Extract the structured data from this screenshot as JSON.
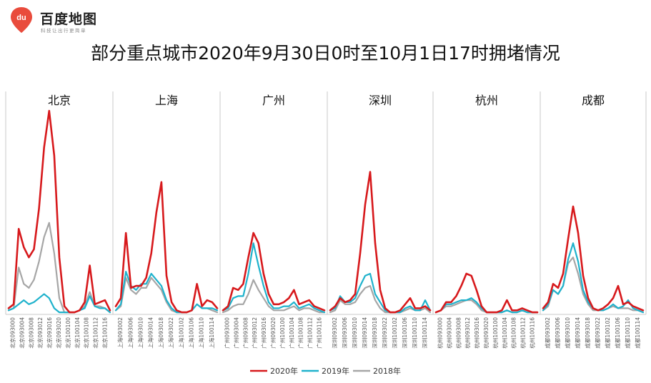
{
  "brand": {
    "name": "百度地图",
    "slogan": "科技让出行更简单",
    "icon_text": "du"
  },
  "chart_data": {
    "type": "line",
    "title": "部分重点城市2020年9月30日0时至10月1日17时拥堵情况",
    "legend_position": "bottom",
    "grid": false,
    "series_names": [
      "2020年",
      "2019年",
      "2018年"
    ],
    "colors": {
      "2020年": "#d7191c",
      "2019年": "#1fb2cc",
      "2018年": "#a6a6a6"
    },
    "ylim": [
      0,
      100
    ],
    "panels": [
      {
        "city": "北京",
        "x_labels": [
          "北京093000",
          "北京093004",
          "北京093008",
          "北京093012",
          "北京093016",
          "北京093020",
          "北京100100",
          "北京100104",
          "北京100108",
          "北京100112",
          "北京100116"
        ],
        "series": [
          {
            "name": "2020年",
            "values": [
              3,
              5,
              42,
              33,
              28,
              32,
              52,
              82,
              100,
              78,
              28,
              4,
              1,
              1,
              2,
              6,
              24,
              5,
              6,
              7,
              2
            ]
          },
          {
            "name": "2019年",
            "values": [
              2,
              3,
              5,
              7,
              5,
              6,
              8,
              10,
              8,
              3,
              1,
              1,
              1,
              1,
              2,
              3,
              9,
              4,
              3,
              3,
              1
            ]
          },
          {
            "name": "2018年",
            "values": [
              2,
              3,
              23,
              15,
              13,
              17,
              26,
              38,
              45,
              30,
              8,
              1,
              1,
              1,
              2,
              4,
              11,
              4,
              4,
              3,
              1
            ]
          }
        ]
      },
      {
        "city": "上海",
        "x_labels": [
          "上海093002",
          "上海093006",
          "上海093010",
          "上海093014",
          "上海093018",
          "上海093022",
          "上海100102",
          "上海100106",
          "上海100110",
          "上海100114"
        ],
        "series": [
          {
            "name": "2020年",
            "values": [
              4,
              8,
              40,
              13,
              14,
              14,
              18,
              30,
              50,
              65,
              19,
              6,
              2,
              1,
              1,
              2,
              15,
              4,
              7,
              6,
              3
            ]
          },
          {
            "name": "2019年",
            "values": [
              2,
              5,
              21,
              14,
              12,
              15,
              15,
              20,
              17,
              14,
              7,
              3,
              1,
              1,
              1,
              2,
              5,
              3,
              3,
              3,
              2
            ]
          },
          {
            "name": "2018年",
            "values": [
              2,
              4,
              18,
              12,
              10,
              13,
              13,
              18,
              15,
              12,
              6,
              2,
              1,
              1,
              1,
              2,
              5,
              3,
              3,
              2,
              1
            ]
          }
        ]
      },
      {
        "city": "广州",
        "x_labels": [
          "广州093000",
          "广州093004",
          "广州093008",
          "广州093012",
          "广州093016",
          "广州093020",
          "广州100100",
          "广州100104",
          "广州100108",
          "广州100112",
          "广州100116"
        ],
        "series": [
          {
            "name": "2020年",
            "values": [
              2,
              4,
              13,
              12,
              15,
              28,
              40,
              35,
              20,
              10,
              5,
              5,
              6,
              8,
              12,
              5,
              6,
              7,
              4,
              3,
              2
            ]
          },
          {
            "name": "2019年",
            "values": [
              2,
              3,
              8,
              9,
              9,
              20,
              35,
              24,
              14,
              6,
              3,
              3,
              4,
              4,
              6,
              3,
              4,
              5,
              3,
              2,
              1
            ]
          },
          {
            "name": "2018年",
            "values": [
              1,
              2,
              4,
              5,
              5,
              10,
              17,
              12,
              8,
              4,
              2,
              2,
              2,
              3,
              4,
              2,
              3,
              3,
              2,
              1,
              1
            ]
          }
        ]
      },
      {
        "city": "深圳",
        "x_labels": [
          "深圳093002",
          "深圳093006",
          "深圳093010",
          "深圳093014",
          "深圳093018",
          "深圳093022",
          "深圳100102",
          "深圳100106",
          "深圳100110",
          "深圳100114"
        ],
        "series": [
          {
            "name": "2020年",
            "values": [
              2,
              4,
              8,
              6,
              7,
              10,
              30,
              54,
              70,
              35,
              12,
              3,
              1,
              1,
              2,
              5,
              8,
              3,
              3,
              4,
              2
            ]
          },
          {
            "name": "2019年",
            "values": [
              2,
              3,
              9,
              6,
              6,
              8,
              14,
              19,
              20,
              10,
              6,
              2,
              1,
              1,
              1,
              3,
              4,
              2,
              2,
              7,
              2
            ]
          },
          {
            "name": "2018年",
            "values": [
              1,
              2,
              7,
              5,
              5,
              6,
              10,
              13,
              14,
              7,
              3,
              1,
              1,
              1,
              1,
              2,
              3,
              2,
              2,
              3,
              1
            ]
          }
        ]
      },
      {
        "city": "杭州",
        "x_labels": [
          "杭州093000",
          "杭州093004",
          "杭州093008",
          "杭州093012",
          "杭州093016",
          "杭州093020",
          "杭州100100",
          "杭州100104",
          "杭州100108",
          "杭州100112",
          "杭州100116"
        ],
        "series": [
          {
            "name": "2020年",
            "values": [
              1,
              2,
              6,
              6,
              9,
              14,
              20,
              19,
              12,
              4,
              1,
              1,
              1,
              2,
              7,
              2,
              2,
              3,
              2,
              1,
              1
            ]
          },
          {
            "name": "2019年",
            "values": [
              1,
              2,
              5,
              5,
              6,
              7,
              7,
              8,
              6,
              3,
              1,
              1,
              1,
              1,
              2,
              1,
              1,
              2,
              1,
              1,
              1
            ]
          },
          {
            "name": "2018年",
            "values": [
              1,
              2,
              4,
              4,
              5,
              6,
              7,
              7,
              5,
              2,
              1,
              1,
              1,
              1,
              2,
              1,
              1,
              2,
              1,
              1,
              1
            ]
          }
        ]
      },
      {
        "city": "成都",
        "x_labels": [
          "成都093002",
          "成都093006",
          "成都093010",
          "成都093014",
          "成都093018",
          "成都093022",
          "成都100102",
          "成都100106",
          "成都100110",
          "成都100114"
        ],
        "series": [
          {
            "name": "2020年",
            "values": [
              3,
              6,
              15,
              13,
              20,
              37,
              53,
              40,
              19,
              8,
              3,
              2,
              3,
              5,
              8,
              14,
              5,
              6,
              4,
              3,
              2
            ]
          },
          {
            "name": "2019年",
            "values": [
              2,
              5,
              12,
              10,
              14,
              27,
              35,
              26,
              12,
              6,
              3,
              2,
              2,
              3,
              5,
              3,
              4,
              7,
              3,
              2,
              1
            ]
          },
          {
            "name": "2018年",
            "values": [
              2,
              4,
              12,
              10,
              14,
              25,
              28,
              20,
              10,
              5,
              2,
              2,
              2,
              3,
              4,
              3,
              3,
              3,
              2,
              2,
              1
            ]
          }
        ]
      }
    ]
  }
}
